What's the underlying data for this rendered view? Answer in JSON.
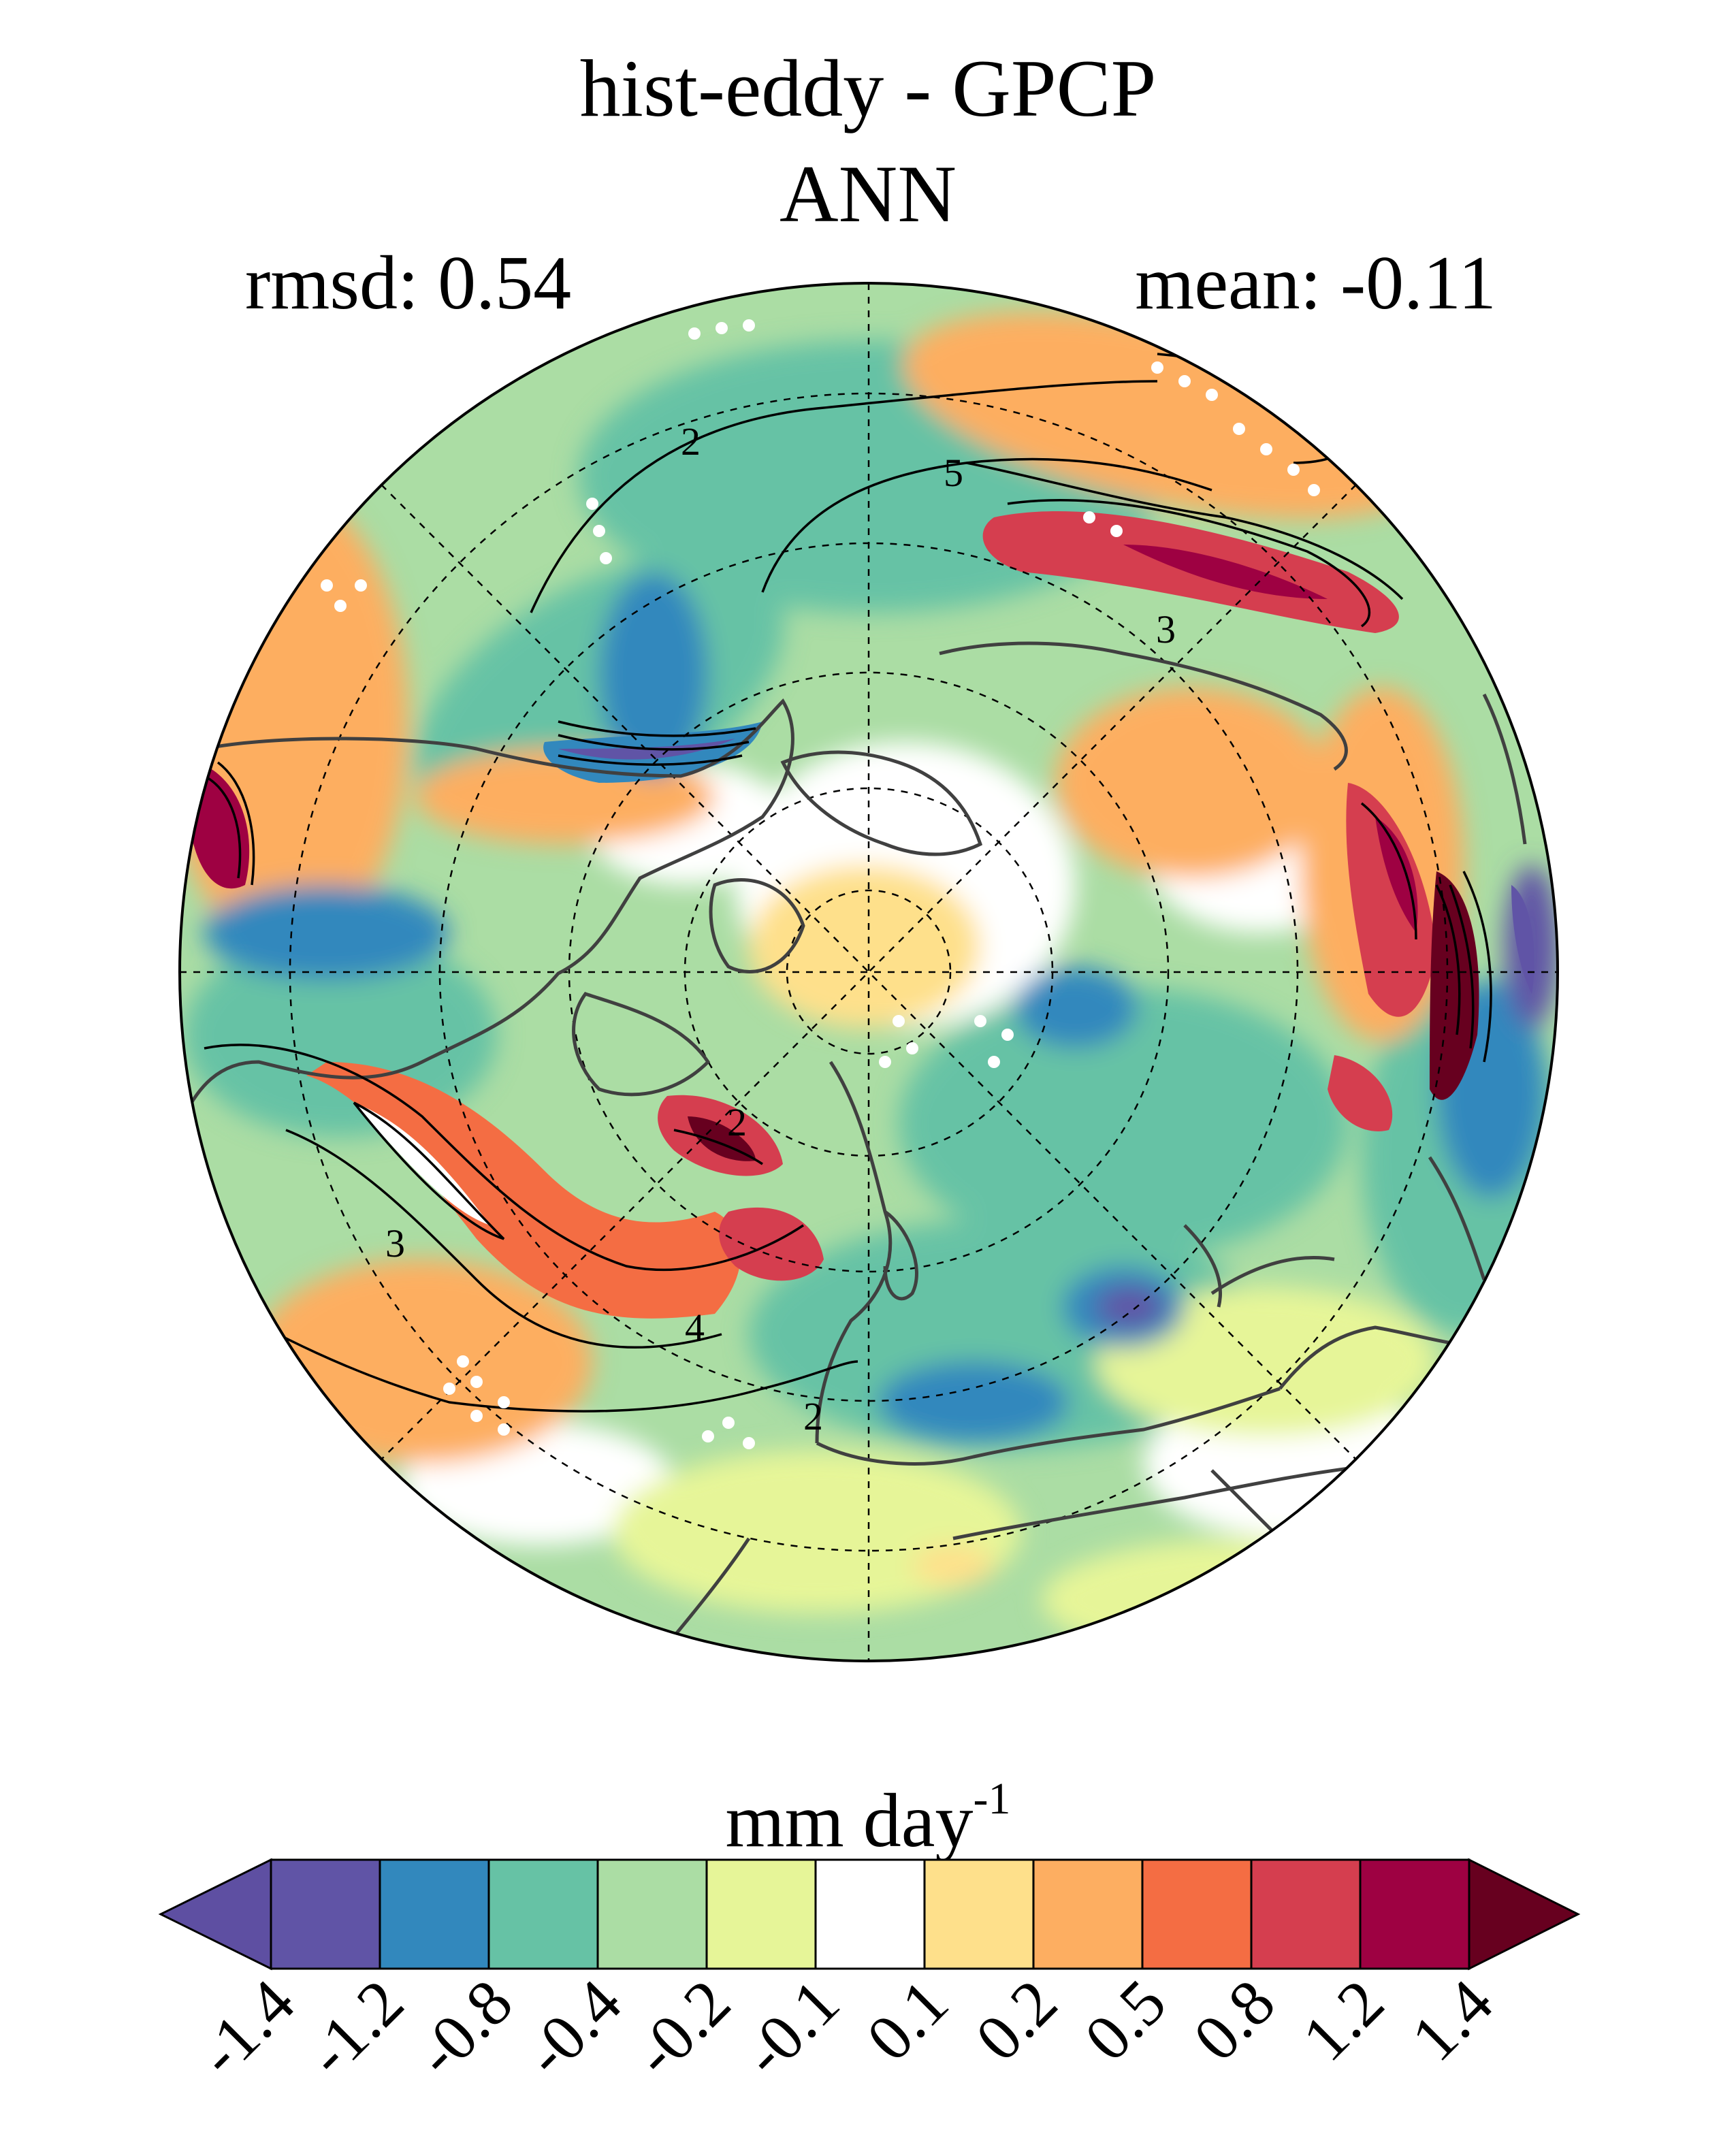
{
  "title": "hist-eddy - GPCP",
  "subtitle": "ANN",
  "stats": {
    "left": "rmsd: 0.54",
    "right": "mean: -0.11"
  },
  "map": {
    "projection": "north polar stereographic",
    "contour_labels": [
      "2",
      "5",
      "3",
      "2",
      "3",
      "4",
      "2"
    ],
    "land_outline_color": "#404040",
    "contour_color": "#000000",
    "stipple_color": "#ffffff"
  },
  "colorbar": {
    "units_main": "mm day",
    "units_exp": "-1",
    "levels": [
      "-1.4",
      "-1.2",
      "-0.8",
      "-0.4",
      "-0.2",
      "-0.1",
      "0.1",
      "0.2",
      "0.5",
      "0.8",
      "1.2",
      "1.4"
    ],
    "colors": [
      "#5e4fa2",
      "#6054a6",
      "#3288bd",
      "#66c2a5",
      "#abdda4",
      "#e6f598",
      "#ffffff",
      "#fee08b",
      "#fdae61",
      "#f46d43",
      "#d53e4f",
      "#9e0142",
      "#67001f"
    ],
    "under_color": "#5e4fa2",
    "over_color": "#67001f"
  }
}
